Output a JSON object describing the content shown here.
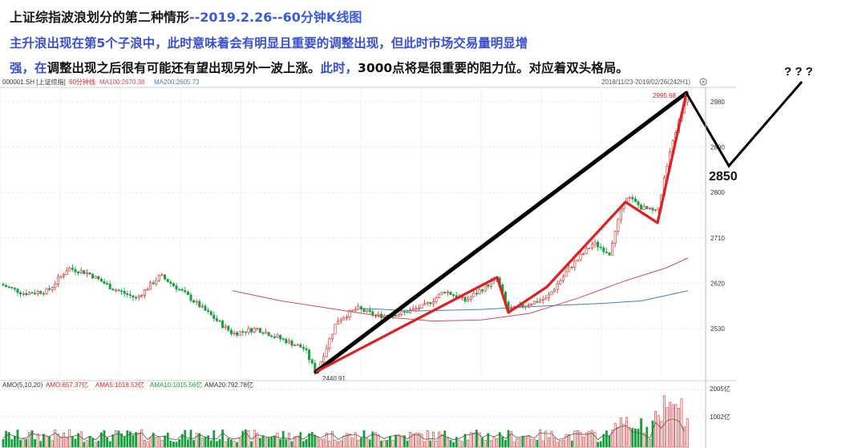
{
  "header": {
    "title_main": "上证综指波浪划分的第二种情形",
    "title_date": "--2019.2.26--60分钟K线图",
    "desc_line1": "主升浪出现在第5个子浪中，此时意味着会有明显且重要的调整出现，但此时市场交易量明显增",
    "desc_line2_a": "强，在",
    "desc_line2_b": "调整出现之后很有可能还有望出现另外一波上涨。",
    "desc_line2_c": "此时，",
    "desc_line2_d": "3000点将是很重要的阻力位。对应着双头格局。"
  },
  "infobar": {
    "symbol": "000001.SH [上证综指]",
    "period": "60分钟线",
    "ma100": "MA100:2670.38",
    "ma200": "MA200:2605.73",
    "date_range": "2018/11/23-2019/02/26(242H1)",
    "gear_icon": "gear-icon"
  },
  "volbar": {
    "label": "AMO(5,10,20)",
    "amo": "AMO:657.37亿",
    "ama5": "AMA5:1018.53亿",
    "ama10": "AMA10:1015.56亿",
    "ama20": "AMA20:792.78亿"
  },
  "annotations": {
    "high_label": "2995.68",
    "low_label": "2440.91",
    "target_label": "2850",
    "question": "? ? ?"
  },
  "colors": {
    "up": "#e02020",
    "down": "#14a03a",
    "ma100": "#d64a55",
    "ma200": "#3f7fc1",
    "wave": "#e02020",
    "trend": "#000000",
    "title_blue": "#3a4fd0"
  },
  "chart_data": {
    "type": "candlestick",
    "price_axis": {
      "ticks": [
        2530,
        2620,
        2710,
        2800,
        2890,
        2980
      ],
      "range": [
        2440,
        2995
      ]
    },
    "volume_axis": {
      "ticks": [
        "1002亿",
        "2005亿"
      ]
    },
    "period": "60分钟",
    "date_range": "2018/11/23-2019/02/26",
    "bars_count": 242,
    "low": 2440.91,
    "high": 2995.68,
    "wave_path_price": [
      2440.91,
      2590,
      2630,
      2565,
      2585,
      2570,
      2795,
      2760,
      2840,
      2995.68
    ],
    "double_top_projection": [
      2995.68,
      2850,
      2990
    ],
    "ma100_last": 2670.38,
    "ma200_last": 2605.73
  }
}
